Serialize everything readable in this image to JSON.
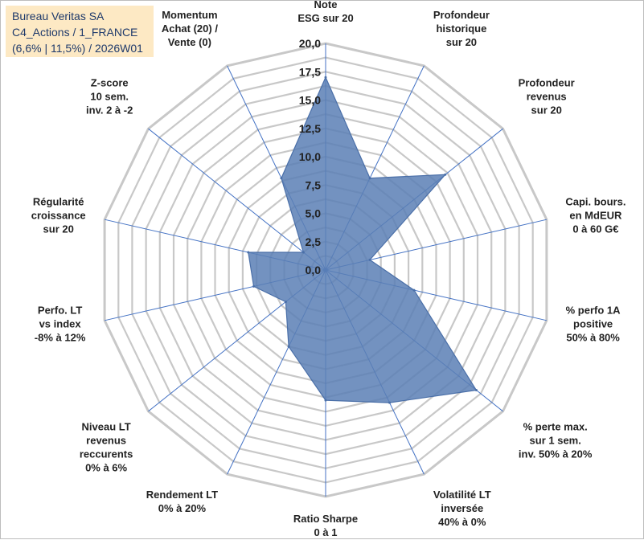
{
  "title_lines": [
    "Bureau Veritas SA",
    "C4_Actions / 1_FRANCE",
    "(6,6% | 11,5%) / 2026W01"
  ],
  "colors": {
    "fill": "#5a7fb5",
    "stroke": "#4a6fa8",
    "grid": "#c8c8c8",
    "spoke": "#4472c4"
  },
  "chart_data": {
    "type": "radar",
    "title": "Bureau Veritas SA - C4_Actions / 1_FRANCE - (6,6% | 11,5%) / 2026W01",
    "rmin": 0,
    "rmax": 20,
    "ticks": [
      "0,0",
      "2,5",
      "5,0",
      "7,5",
      "10,0",
      "12,5",
      "15,0",
      "17,5",
      "20,0"
    ],
    "tick_values": [
      0,
      2.5,
      5,
      7.5,
      10,
      12.5,
      15,
      17.5,
      20
    ],
    "axes": [
      {
        "label": [
          "Note",
          "ESG sur 20"
        ],
        "value": 17.0
      },
      {
        "label": [
          "Profondeur",
          "historique",
          "sur 20"
        ],
        "value": 9.0
      },
      {
        "label": [
          "Profondeur",
          "revenus",
          "sur 20"
        ],
        "value": 13.5
      },
      {
        "label": [
          "Capi. bours.",
          "en MdEUR",
          "0 à 60 G€"
        ],
        "value": 4.0
      },
      {
        "label": [
          "% perfo 1A",
          "positive",
          "50% à 80%"
        ],
        "value": 8.0
      },
      {
        "label": [
          "% perte max.",
          "sur 1 sem.",
          "inv. 50% à 20%"
        ],
        "value": 17.0
      },
      {
        "label": [
          "Volatilité LT",
          "inversée",
          "40% à 0%"
        ],
        "value": 13.0
      },
      {
        "label": [
          "Ratio Sharpe",
          "0 à 1"
        ],
        "value": 11.5
      },
      {
        "label": [
          "Rendement LT",
          "0% à 20%"
        ],
        "value": 7.5
      },
      {
        "label": [
          "Niveau LT",
          "revenus",
          "reccurents",
          "0% à 6%"
        ],
        "value": 4.5
      },
      {
        "label": [
          "Perfo. LT",
          "vs index",
          "-8% à 12%"
        ],
        "value": 6.5
      },
      {
        "label": [
          "Régularité",
          "croissance",
          "sur 20"
        ],
        "value": 7.0
      },
      {
        "label": [
          "Z-score",
          "10 sem.",
          "inv. 2 à -2"
        ],
        "value": 2.5
      },
      {
        "label": [
          "Momentum",
          "Achat (20) /",
          "Vente (0)"
        ],
        "value": 9.0
      }
    ]
  }
}
